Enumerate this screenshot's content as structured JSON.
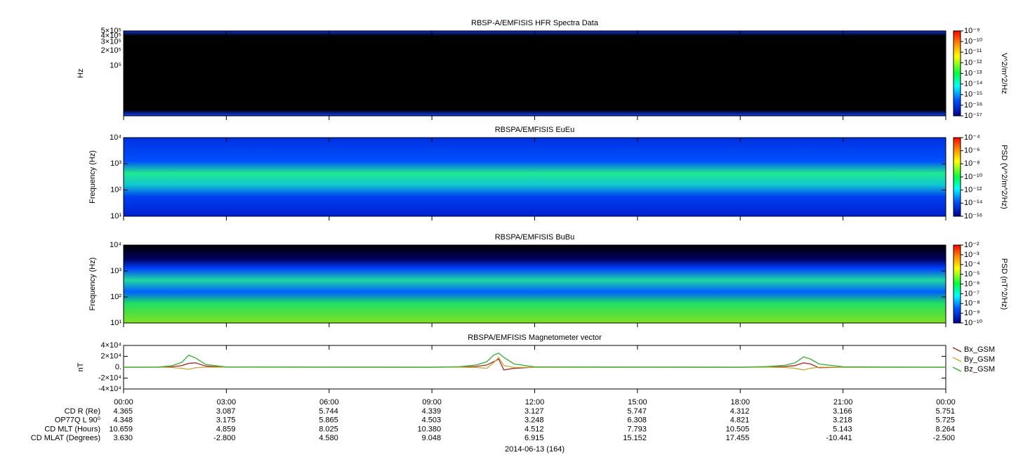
{
  "chart_data": [
    {
      "type": "heatmap",
      "title": "RBSP-A/EMFISIS  HFR Spectra Data",
      "ylabel": "Hz",
      "log_y": true,
      "ylim": [
        10000,
        500000
      ],
      "yticks": [
        {
          "value": 500000,
          "label": "5×10⁵"
        },
        {
          "value": 400000,
          "label": "4×10⁵"
        },
        {
          "value": 300000,
          "label": "3×10⁵"
        },
        {
          "value": 200000,
          "label": "2×10⁵"
        },
        {
          "value": 100000,
          "label": "10⁵"
        }
      ],
      "colorbar": {
        "label": "V^2/m^2/Hz",
        "log": true,
        "lim": [
          1e-17,
          1e-09
        ],
        "ticks": [
          {
            "value": 1e-09,
            "label": "10⁻⁹"
          },
          {
            "value": 1e-10,
            "label": "10⁻¹⁰"
          },
          {
            "value": 1e-11,
            "label": "10⁻¹¹"
          },
          {
            "value": 1e-12,
            "label": "10⁻¹²"
          },
          {
            "value": 1e-13,
            "label": "10⁻¹³"
          },
          {
            "value": 1e-14,
            "label": "10⁻¹⁴"
          },
          {
            "value": 1e-15,
            "label": "10⁻¹⁵"
          },
          {
            "value": 1e-16,
            "label": "10⁻¹⁶"
          },
          {
            "value": 1e-17,
            "label": "10⁻¹⁷"
          }
        ]
      }
    },
    {
      "type": "heatmap",
      "title": "RBSPA/EMFISIS  EuEu",
      "ylabel": "Frequency (Hz)",
      "log_y": true,
      "ylim": [
        10,
        10000
      ],
      "yticks": [
        {
          "value": 10000,
          "label": "10⁴"
        },
        {
          "value": 1000,
          "label": "10³"
        },
        {
          "value": 100,
          "label": "10²"
        },
        {
          "value": 10,
          "label": "10¹"
        }
      ],
      "colorbar": {
        "label": "PSD (V^2/m^2/Hz)",
        "log": true,
        "lim": [
          1e-16,
          0.0001
        ],
        "ticks": [
          {
            "value": 0.0001,
            "label": "10⁻⁴"
          },
          {
            "value": 1e-06,
            "label": "10⁻⁶"
          },
          {
            "value": 1e-08,
            "label": "10⁻⁸"
          },
          {
            "value": 1e-10,
            "label": "10⁻¹⁰"
          },
          {
            "value": 1e-12,
            "label": "10⁻¹²"
          },
          {
            "value": 1e-14,
            "label": "10⁻¹⁴"
          },
          {
            "value": 1e-16,
            "label": "10⁻¹⁶"
          }
        ]
      }
    },
    {
      "type": "heatmap",
      "title": "RBSPA/EMFISIS  BuBu",
      "ylabel": "Frequency (Hz)",
      "log_y": true,
      "ylim": [
        10,
        10000
      ],
      "yticks": [
        {
          "value": 10000,
          "label": "10⁴"
        },
        {
          "value": 1000,
          "label": "10³"
        },
        {
          "value": 100,
          "label": "10²"
        },
        {
          "value": 10,
          "label": "10¹"
        }
      ],
      "colorbar": {
        "label": "PSD (nT^2/Hz)",
        "log": true,
        "lim": [
          1e-10,
          0.01
        ],
        "ticks": [
          {
            "value": 0.01,
            "label": "10⁻²"
          },
          {
            "value": 0.001,
            "label": "10⁻³"
          },
          {
            "value": 0.0001,
            "label": "10⁻⁴"
          },
          {
            "value": 1e-05,
            "label": "10⁻⁵"
          },
          {
            "value": 1e-06,
            "label": "10⁻⁶"
          },
          {
            "value": 1e-07,
            "label": "10⁻⁷"
          },
          {
            "value": 1e-08,
            "label": "10⁻⁸"
          },
          {
            "value": 1e-09,
            "label": "10⁻⁹"
          },
          {
            "value": 1e-10,
            "label": "10⁻¹⁰"
          }
        ]
      }
    },
    {
      "type": "line",
      "title": "RBSPA/EMFISIS  Magnetometer vector",
      "ylabel": "nT",
      "legend": "outside right",
      "ylim": [
        -40000,
        40000
      ],
      "yticks": [
        {
          "value": 40000,
          "label": "4×10⁴"
        },
        {
          "value": 20000,
          "label": "2×10⁴"
        },
        {
          "value": 0,
          "label": "0."
        },
        {
          "value": -20000,
          "label": "-2×10⁴"
        },
        {
          "value": -40000,
          "label": "-4×10⁴"
        }
      ],
      "xlim": [
        0,
        24
      ],
      "xticks": [
        {
          "value": 0,
          "label": "00:00"
        },
        {
          "value": 3,
          "label": "03:00"
        },
        {
          "value": 6,
          "label": "06:00"
        },
        {
          "value": 9,
          "label": "09:00"
        },
        {
          "value": 12,
          "label": "12:00"
        },
        {
          "value": 15,
          "label": "15:00"
        },
        {
          "value": 18,
          "label": "18:00"
        },
        {
          "value": 21,
          "label": "21:00"
        },
        {
          "value": 24,
          "label": "00:00"
        }
      ],
      "xlabel": "2014-06-13 (164)",
      "x": [
        0,
        1,
        1.4,
        1.7,
        1.9,
        2.1,
        2.4,
        3,
        9,
        9.8,
        10.3,
        10.6,
        10.8,
        10.95,
        11.1,
        11.4,
        12,
        18,
        18.8,
        19.3,
        19.6,
        19.85,
        20.05,
        20.3,
        21,
        24
      ],
      "series": [
        {
          "name": "Bx_GSM",
          "color": "#a52a2a",
          "values": [
            0,
            100,
            800,
            3000,
            7000,
            8000,
            2000,
            200,
            0,
            300,
            1500,
            4000,
            10000,
            15000,
            -5000,
            -2000,
            100,
            0,
            300,
            1200,
            3000,
            8000,
            6000,
            -1000,
            0,
            0
          ]
        },
        {
          "name": "By_GSM",
          "color": "#c8a838",
          "values": [
            0,
            0,
            -500,
            -2000,
            -4000,
            -1000,
            0,
            0,
            0,
            0,
            -500,
            -2000,
            8000,
            18000,
            3000,
            -500,
            0,
            0,
            0,
            -500,
            -2000,
            -5000,
            -2000,
            0,
            0,
            0
          ]
        },
        {
          "name": "Bz_GSM",
          "color": "#33b033",
          "values": [
            0,
            300,
            2500,
            9000,
            22000,
            17000,
            5000,
            500,
            0,
            1000,
            4000,
            10000,
            22000,
            26000,
            18000,
            6000,
            600,
            0,
            1200,
            3500,
            8000,
            19000,
            15000,
            6000,
            700,
            0
          ]
        }
      ],
      "ephemeris": [
        {
          "label": "CD R (Re)",
          "values": [
            4.365,
            3.087,
            5.744,
            4.339,
            3.127,
            5.747,
            4.312,
            3.166,
            5.751
          ]
        },
        {
          "label": "OP77Q L 90⁰",
          "values": [
            4.348,
            3.175,
            5.865,
            4.503,
            3.248,
            6.308,
            4.821,
            3.218,
            5.725
          ]
        },
        {
          "label": "CD MLT (Hours)",
          "values": [
            10.659,
            4.859,
            8.025,
            10.38,
            4.512,
            7.793,
            10.505,
            5.143,
            8.264
          ],
          "value_labels": [
            "10.659",
            "4.859",
            "8.025",
            "10.380",
            "4.512",
            "7.793",
            "10.505",
            "5.143",
            "8.264"
          ]
        },
        {
          "label": "CD MLAT (Degrees)",
          "values": [
            3.63,
            -2.8,
            4.58,
            9.048,
            6.915,
            15.152,
            17.455,
            -10.441,
            -2.5
          ],
          "value_labels": [
            "3.630",
            "-2.800",
            "4.580",
            "9.048",
            "6.915",
            "15.152",
            "17.455",
            "-10.441",
            "-2.500"
          ]
        }
      ]
    }
  ]
}
